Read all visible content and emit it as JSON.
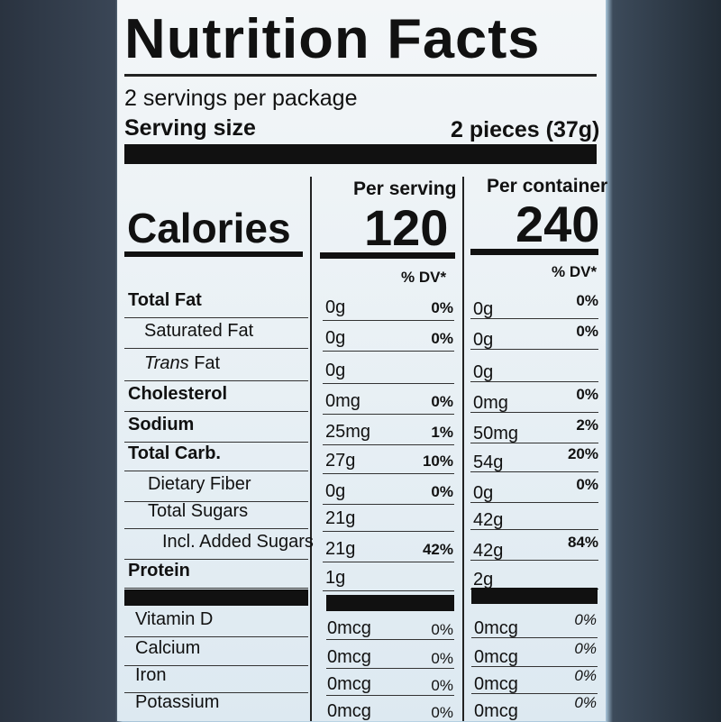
{
  "title": "Nutrition Facts",
  "servings_per_package": "2 servings per package",
  "serving_size_label": "Serving size",
  "serving_size_value": "2 pieces (37g)",
  "col_per_serving": "Per serving",
  "col_per_container": "Per container",
  "calories_label": "Calories",
  "calories_serving": "120",
  "calories_container": "240",
  "dv_label": "% DV*",
  "trans_italic": "Trans",
  "nutrients": [
    {
      "name": "Total Fat",
      "s_amt": "0g",
      "s_dv": "0%",
      "c_amt": "0g",
      "c_dv": "0%"
    },
    {
      "name": "Saturated Fat",
      "s_amt": "0g",
      "s_dv": "0%",
      "c_amt": "0g",
      "c_dv": "0%"
    },
    {
      "name": "Fat",
      "s_amt": "0g",
      "s_dv": "",
      "c_amt": "0g",
      "c_dv": ""
    },
    {
      "name": "Cholesterol",
      "s_amt": "0mg",
      "s_dv": "0%",
      "c_amt": "0mg",
      "c_dv": "0%"
    },
    {
      "name": "Sodium",
      "s_amt": "25mg",
      "s_dv": "1%",
      "c_amt": "50mg",
      "c_dv": "2%"
    },
    {
      "name": "Total Carb.",
      "s_amt": "27g",
      "s_dv": "10%",
      "c_amt": "54g",
      "c_dv": "20%"
    },
    {
      "name": "Dietary Fiber",
      "s_amt": "0g",
      "s_dv": "0%",
      "c_amt": "0g",
      "c_dv": "0%"
    },
    {
      "name": "Total Sugars",
      "s_amt": "21g",
      "s_dv": "",
      "c_amt": "42g",
      "c_dv": ""
    },
    {
      "name": "Incl. Added Sugars",
      "s_amt": "21g",
      "s_dv": "42%",
      "c_amt": "42g",
      "c_dv": "84%"
    },
    {
      "name": "Protein",
      "s_amt": "1g",
      "s_dv": "",
      "c_amt": "2g",
      "c_dv": ""
    }
  ],
  "vitamins": [
    {
      "name": "Vitamin D",
      "s_amt": "0mcg",
      "s_dv": "0%",
      "c_amt": "0mcg",
      "c_dv": "0%"
    },
    {
      "name": "Calcium",
      "s_amt": "0mcg",
      "s_dv": "0%",
      "c_amt": "0mcg",
      "c_dv": "0%"
    },
    {
      "name": "Iron",
      "s_amt": "0mcg",
      "s_dv": "0%",
      "c_amt": "0mcg",
      "c_dv": "0%"
    },
    {
      "name": "Potassium",
      "s_amt": "0mcg",
      "s_dv": "0%",
      "c_amt": "0mcg",
      "c_dv": "0%"
    }
  ]
}
